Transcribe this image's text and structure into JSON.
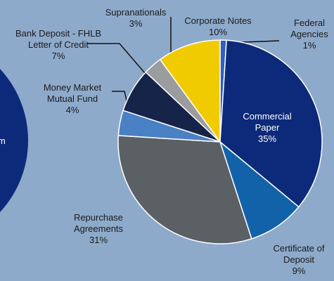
{
  "partial_label": "m",
  "chart_data": {
    "type": "pie",
    "categories": [
      "Federal Agencies",
      "Commercial Paper",
      "Certificate of Deposit",
      "Repurchase Agreements",
      "Money Market Mutual Fund",
      "Bank Deposit - FHLB Letter of Credit",
      "Supranationals",
      "Corporate Notes"
    ],
    "values": [
      1,
      35,
      9,
      31,
      4,
      7,
      3,
      10
    ],
    "value_labels": [
      "1%",
      "35%",
      "9%",
      "31%",
      "4%",
      "7%",
      "3%",
      "10%"
    ],
    "colors": [
      "#2f5fc4",
      "#0d2a7a",
      "#1262aa",
      "#5b6064",
      "#4a80c4",
      "#16244a",
      "#9b9c9e",
      "#f0cb00"
    ]
  }
}
